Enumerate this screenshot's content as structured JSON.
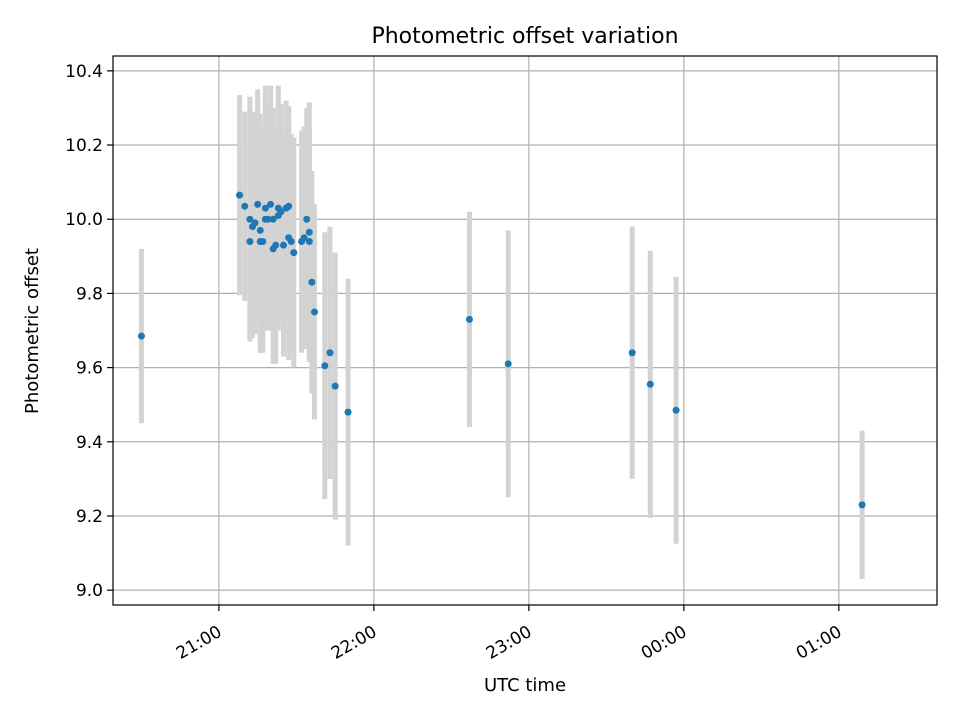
{
  "chart_data": {
    "type": "scatter",
    "title": "Photometric offset variation",
    "xlabel": "UTC time",
    "ylabel": "Photometric offset",
    "x_axis_type": "time",
    "xlim": [
      "20:19",
      "01:38"
    ],
    "ylim": [
      8.96,
      10.44
    ],
    "xticks": [
      {
        "value": "21:00",
        "label": "21:00"
      },
      {
        "value": "22:00",
        "label": "22:00"
      },
      {
        "value": "23:00",
        "label": "23:00"
      },
      {
        "value": "00:00",
        "label": "00:00"
      },
      {
        "value": "01:00",
        "label": "01:00"
      }
    ],
    "yticks": [
      9.0,
      9.2,
      9.4,
      9.6,
      9.8,
      10.0,
      10.2,
      10.4
    ],
    "grid": true,
    "colors": {
      "marker": "#1f77b4",
      "errorbar": "#d3d3d3",
      "grid": "#b0b0b0"
    },
    "series": [
      {
        "x": [
          "20:30",
          "21:08",
          "21:10",
          "21:12",
          "21:12",
          "21:13",
          "21:14",
          "21:15",
          "21:16",
          "21:16",
          "21:17",
          "21:18",
          "21:18",
          "21:19",
          "21:20",
          "21:21",
          "21:21",
          "21:22",
          "21:23",
          "21:23",
          "21:24",
          "21:25",
          "21:26",
          "21:27",
          "21:27",
          "21:28",
          "21:29",
          "21:32",
          "21:33",
          "21:34",
          "21:35",
          "21:35",
          "21:36",
          "21:37",
          "21:41",
          "21:43",
          "21:45",
          "21:50",
          "22:37",
          "22:52",
          "23:40",
          "23:47",
          "23:57",
          "01:09"
        ],
        "y": [
          9.685,
          10.065,
          10.035,
          9.94,
          10.0,
          9.98,
          9.99,
          10.04,
          9.97,
          9.94,
          9.94,
          10.0,
          10.03,
          10.0,
          10.04,
          10.0,
          9.92,
          9.93,
          10.03,
          10.01,
          10.02,
          9.93,
          10.03,
          10.035,
          9.95,
          9.94,
          9.91,
          9.94,
          9.95,
          10.0,
          9.94,
          9.965,
          9.83,
          9.75,
          9.605,
          9.64,
          9.55,
          9.48,
          9.73,
          9.61,
          9.64,
          9.555,
          9.485,
          9.23
        ],
        "yerr": [
          0.235,
          0.27,
          0.255,
          0.26,
          0.33,
          0.3,
          0.3,
          0.31,
          0.315,
          0.3,
          0.3,
          0.26,
          0.33,
          0.3,
          0.32,
          0.3,
          0.31,
          0.32,
          0.33,
          0.3,
          0.29,
          0.3,
          0.29,
          0.27,
          0.33,
          0.29,
          0.31,
          0.3,
          0.3,
          0.3,
          0.31,
          0.35,
          0.3,
          0.29,
          0.36,
          0.34,
          0.36,
          0.36,
          0.29,
          0.36,
          0.34,
          0.36,
          0.36,
          0.2
        ]
      }
    ]
  }
}
